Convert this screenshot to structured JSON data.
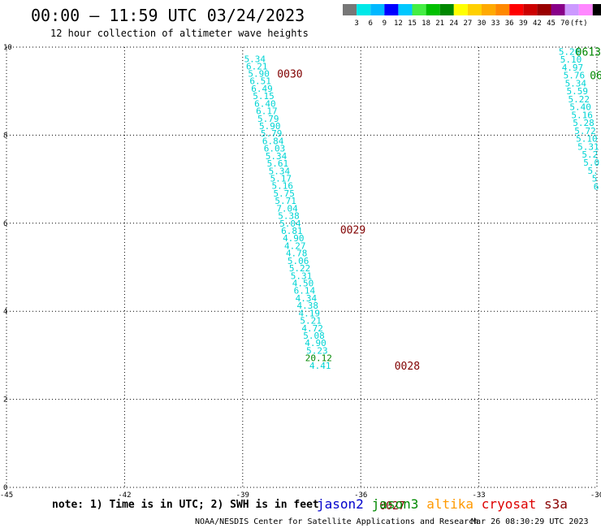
{
  "header": {
    "title": "00:00 – 11:59 UTC 03/24/2023",
    "subtitle": "12 hour collection of altimeter wave heights"
  },
  "legend_bar": {
    "colors": [
      "#777777",
      "#00e8e8",
      "#00b8ff",
      "#0000ff",
      "#00c8ff",
      "#44ee44",
      "#00c000",
      "#008800",
      "#ffff00",
      "#ffd000",
      "#ffaa00",
      "#ff8800",
      "#ff0000",
      "#cc0000",
      "#990000",
      "#880088",
      "#cc99ff",
      "#ff88ff",
      "#000000"
    ],
    "labels": [
      "3",
      "6",
      "9",
      "12",
      "15",
      "18",
      "21",
      "24",
      "27",
      "30",
      "33",
      "36",
      "39",
      "42",
      "45",
      "70",
      "(ft)"
    ]
  },
  "chart_data": {
    "type": "scatter",
    "xlim": [
      -45,
      -30
    ],
    "ylim": [
      0,
      10
    ],
    "x_ticks": [
      "-45",
      "-42",
      "-39",
      "-36",
      "-33",
      "-30"
    ],
    "y_ticks": [
      "0",
      "2",
      "4",
      "6",
      "8",
      "10"
    ],
    "grid": true,
    "main_track": {
      "satellite": "cryosat",
      "color": "#00d4d4",
      "points": [
        {
          "x": -38.69,
          "y": 9.73,
          "v": "5.34"
        },
        {
          "x": -38.64,
          "y": 9.57,
          "v": "6.21"
        },
        {
          "x": -38.59,
          "y": 9.4,
          "v": "5.90"
        },
        {
          "x": -38.55,
          "y": 9.23,
          "v": "6.51"
        },
        {
          "x": -38.51,
          "y": 9.06,
          "v": "6.49"
        },
        {
          "x": -38.47,
          "y": 8.89,
          "v": "5.15"
        },
        {
          "x": -38.43,
          "y": 8.72,
          "v": "6.40"
        },
        {
          "x": -38.39,
          "y": 8.55,
          "v": "6.17"
        },
        {
          "x": -38.35,
          "y": 8.38,
          "v": "5.79"
        },
        {
          "x": -38.31,
          "y": 8.21,
          "v": "5.90"
        },
        {
          "x": -38.27,
          "y": 8.04,
          "v": "5.79"
        },
        {
          "x": -38.23,
          "y": 7.87,
          "v": "6.84"
        },
        {
          "x": -38.19,
          "y": 7.7,
          "v": "6.03"
        },
        {
          "x": -38.15,
          "y": 7.53,
          "v": "5.34"
        },
        {
          "x": -38.11,
          "y": 7.36,
          "v": "5.61"
        },
        {
          "x": -38.07,
          "y": 7.19,
          "v": "5.34"
        },
        {
          "x": -38.03,
          "y": 7.02,
          "v": "5.17"
        },
        {
          "x": -37.99,
          "y": 6.85,
          "v": "5.16"
        },
        {
          "x": -37.95,
          "y": 6.68,
          "v": "5.75"
        },
        {
          "x": -37.91,
          "y": 6.51,
          "v": "5.71"
        },
        {
          "x": -37.87,
          "y": 6.34,
          "v": "7.04"
        },
        {
          "x": -37.83,
          "y": 6.17,
          "v": "5.38"
        },
        {
          "x": -37.79,
          "y": 6.0,
          "v": "5.04"
        },
        {
          "x": -37.75,
          "y": 5.83,
          "v": "6.81"
        },
        {
          "x": -37.71,
          "y": 5.66,
          "v": "4.90"
        },
        {
          "x": -37.67,
          "y": 5.49,
          "v": "4.27"
        },
        {
          "x": -37.63,
          "y": 5.32,
          "v": "4.78"
        },
        {
          "x": -37.59,
          "y": 5.15,
          "v": "5.06"
        },
        {
          "x": -37.55,
          "y": 4.98,
          "v": "5.22"
        },
        {
          "x": -37.51,
          "y": 4.81,
          "v": "5.31"
        },
        {
          "x": -37.47,
          "y": 4.64,
          "v": "4.50"
        },
        {
          "x": -37.43,
          "y": 4.47,
          "v": "6.14"
        },
        {
          "x": -37.39,
          "y": 4.3,
          "v": "4.34"
        },
        {
          "x": -37.35,
          "y": 4.13,
          "v": "4.38"
        },
        {
          "x": -37.31,
          "y": 3.96,
          "v": "4.19"
        },
        {
          "x": -37.27,
          "y": 3.79,
          "v": "5.21"
        },
        {
          "x": -37.23,
          "y": 3.62,
          "v": "4.72"
        },
        {
          "x": -37.19,
          "y": 3.45,
          "v": "5.08"
        },
        {
          "x": -37.15,
          "y": 3.28,
          "v": "4.90"
        },
        {
          "x": -37.11,
          "y": 3.11,
          "v": "5.23"
        },
        {
          "x": -37.07,
          "y": 2.94,
          "v": "20.12",
          "color": "#008800"
        },
        {
          "x": -37.03,
          "y": 2.77,
          "v": "4.41"
        }
      ]
    },
    "right_track": {
      "color": "#00d4d4",
      "points": [
        {
          "x": -30.7,
          "y": 9.9,
          "v": "5.20"
        },
        {
          "x": -30.66,
          "y": 9.72,
          "v": "5.10"
        },
        {
          "x": -30.62,
          "y": 9.54,
          "v": "4.97"
        },
        {
          "x": -30.58,
          "y": 9.36,
          "v": "5.76"
        },
        {
          "x": -30.54,
          "y": 9.18,
          "v": "5.34"
        },
        {
          "x": -30.5,
          "y": 9.0,
          "v": "5.59"
        },
        {
          "x": -30.46,
          "y": 8.82,
          "v": "5.22"
        },
        {
          "x": -30.42,
          "y": 8.64,
          "v": "5.40"
        },
        {
          "x": -30.38,
          "y": 8.46,
          "v": "5.16"
        },
        {
          "x": -30.34,
          "y": 8.28,
          "v": "5.28"
        },
        {
          "x": -30.3,
          "y": 8.1,
          "v": "5.72"
        },
        {
          "x": -30.26,
          "y": 7.92,
          "v": "5.10"
        },
        {
          "x": -30.22,
          "y": 7.74,
          "v": "5.31"
        },
        {
          "x": -30.18,
          "y": 7.56,
          "v": "5.2"
        },
        {
          "x": -30.14,
          "y": 7.38,
          "v": "5.0"
        },
        {
          "x": -30.1,
          "y": 7.2,
          "v": "5."
        },
        {
          "x": -30.06,
          "y": 7.02,
          "v": "5"
        },
        {
          "x": -30.02,
          "y": 6.84,
          "v": "6"
        }
      ]
    },
    "time_labels": [
      {
        "x": -37.8,
        "y": 9.4,
        "text": "0030",
        "color": "#800000"
      },
      {
        "x": -36.2,
        "y": 5.86,
        "text": "0029",
        "color": "#800000"
      },
      {
        "x": -34.82,
        "y": 2.77,
        "text": "0028",
        "color": "#800000"
      },
      {
        "x": -35.2,
        "y": -0.41,
        "text": "0027",
        "color": "#800000"
      },
      {
        "x": -30.22,
        "y": 9.9,
        "text": "0613",
        "color": "#008800"
      },
      {
        "x": -30.02,
        "y": 9.36,
        "text": "06",
        "color": "#008800"
      }
    ]
  },
  "footer": {
    "note": "note: 1) Time is in UTC; 2) SWH is in feet",
    "satellites": [
      {
        "name": "jason2",
        "color": "#0000cc"
      },
      {
        "name": "jason3",
        "color": "#008800"
      },
      {
        "name": "altika",
        "color": "#ff9900"
      },
      {
        "name": "cryosat",
        "color": "#dd0000"
      },
      {
        "name": "s3a",
        "color": "#880000"
      }
    ],
    "credit": "NOAA/NESDIS Center for Satellite Applications and Research",
    "timestamp": "Mar 26 08:30:29 UTC 2023"
  }
}
